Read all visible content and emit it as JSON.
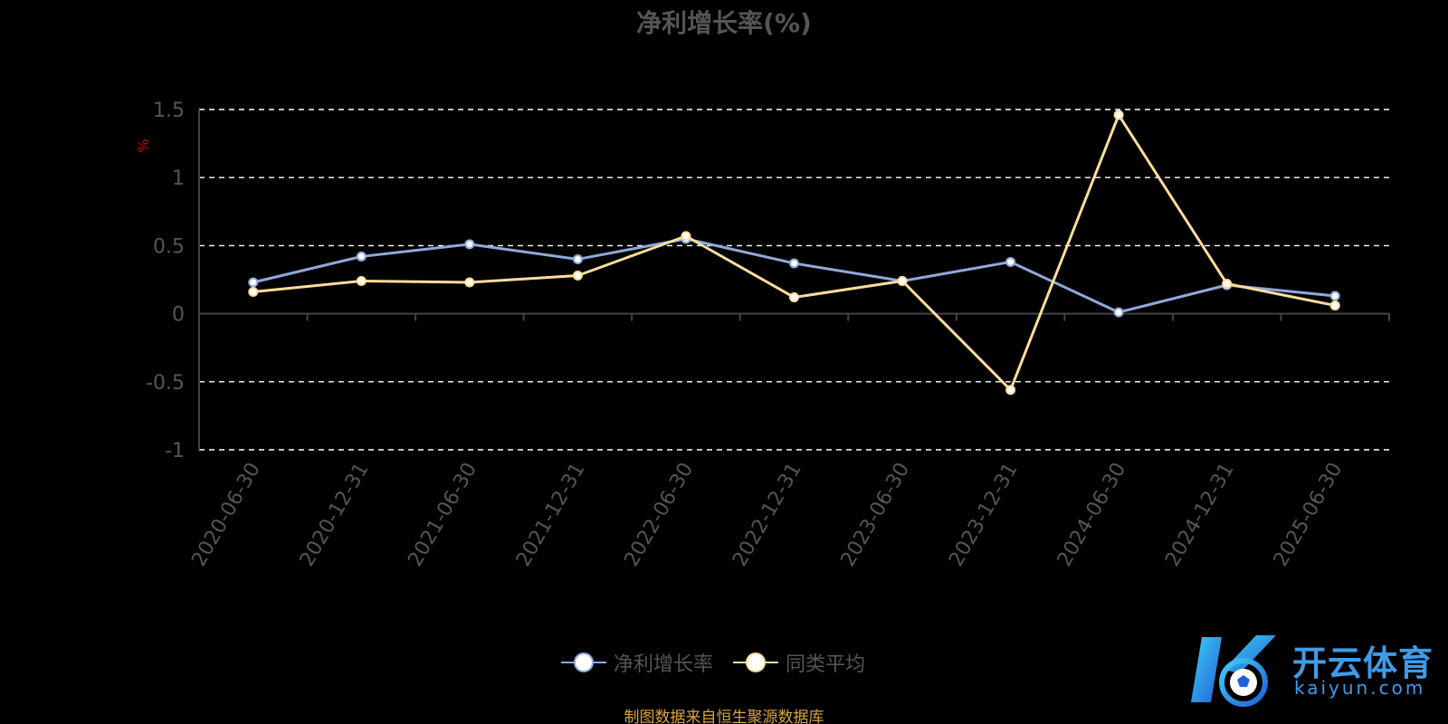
{
  "chart_data": {
    "type": "line",
    "title": "净利增长率(%)",
    "ylabel": "%",
    "xlabel": "",
    "categories": [
      "2020-06-30",
      "2020-12-31",
      "2021-06-30",
      "2021-12-31",
      "2022-06-30",
      "2022-12-31",
      "2023-06-30",
      "2023-12-31",
      "2024-06-30",
      "2024-12-31",
      "2025-06-30"
    ],
    "ylim": [
      -1,
      1.5
    ],
    "yticks": [
      "1.5",
      "1",
      "0.5",
      "0",
      "-0.5",
      "-1"
    ],
    "grid": true,
    "legend_position": "bottom",
    "series": [
      {
        "name": "净利增长率",
        "color": "#8fa9dc",
        "values": [
          0.23,
          0.42,
          0.51,
          0.4,
          0.55,
          0.37,
          0.24,
          0.38,
          0.01,
          0.21,
          0.13
        ]
      },
      {
        "name": "同类平均",
        "color": "#fddd9a",
        "values": [
          0.16,
          0.24,
          0.23,
          0.28,
          0.57,
          0.12,
          0.24,
          -0.56,
          1.46,
          0.22,
          0.06
        ]
      }
    ]
  },
  "source_note": "制图数据来自恒生聚源数据库",
  "brand": {
    "name": "开云体育",
    "domain": "kaiyun.com"
  },
  "colors": {
    "background": "#000000",
    "axis_text": "#555555",
    "grid": "#ffffff",
    "ylabel": "#cc0000",
    "source_note": "#d9a53c",
    "brand": "#3f9be8"
  }
}
